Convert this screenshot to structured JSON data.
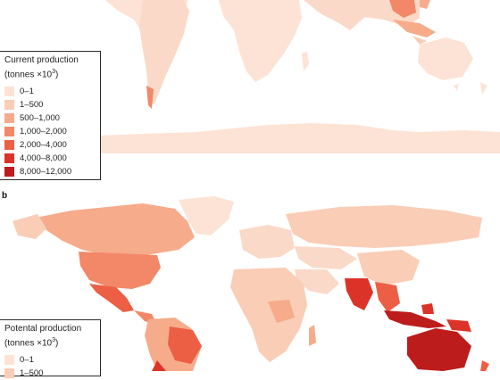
{
  "panels": [
    {
      "id": "a",
      "label": "",
      "legend_title": "Current production",
      "legend_unit": "(tonnes ×10",
      "legend_unit_sup": "3",
      "legend_unit_close": ")",
      "classes": [
        {
          "label": "0–1",
          "color": "#fde3d6"
        },
        {
          "label": "1–500",
          "color": "#f9cdb6"
        },
        {
          "label": "500–1,000",
          "color": "#f6ab8b"
        },
        {
          "label": "1,000–2,000",
          "color": "#f28867"
        },
        {
          "label": "2,000–4,000",
          "color": "#ec5f45"
        },
        {
          "label": "4,000–8,000",
          "color": "#dc3328"
        },
        {
          "label": "8,000–12,000",
          "color": "#bd1c1c"
        }
      ]
    },
    {
      "id": "b",
      "label": "b",
      "legend_title": "Potental production",
      "legend_unit": "(tonnes ×10",
      "legend_unit_sup": "3",
      "legend_unit_close": ")",
      "classes": [
        {
          "label": "0–1",
          "color": "#fde3d6"
        },
        {
          "label": "1–500",
          "color": "#f9cdb6"
        }
      ]
    }
  ]
}
